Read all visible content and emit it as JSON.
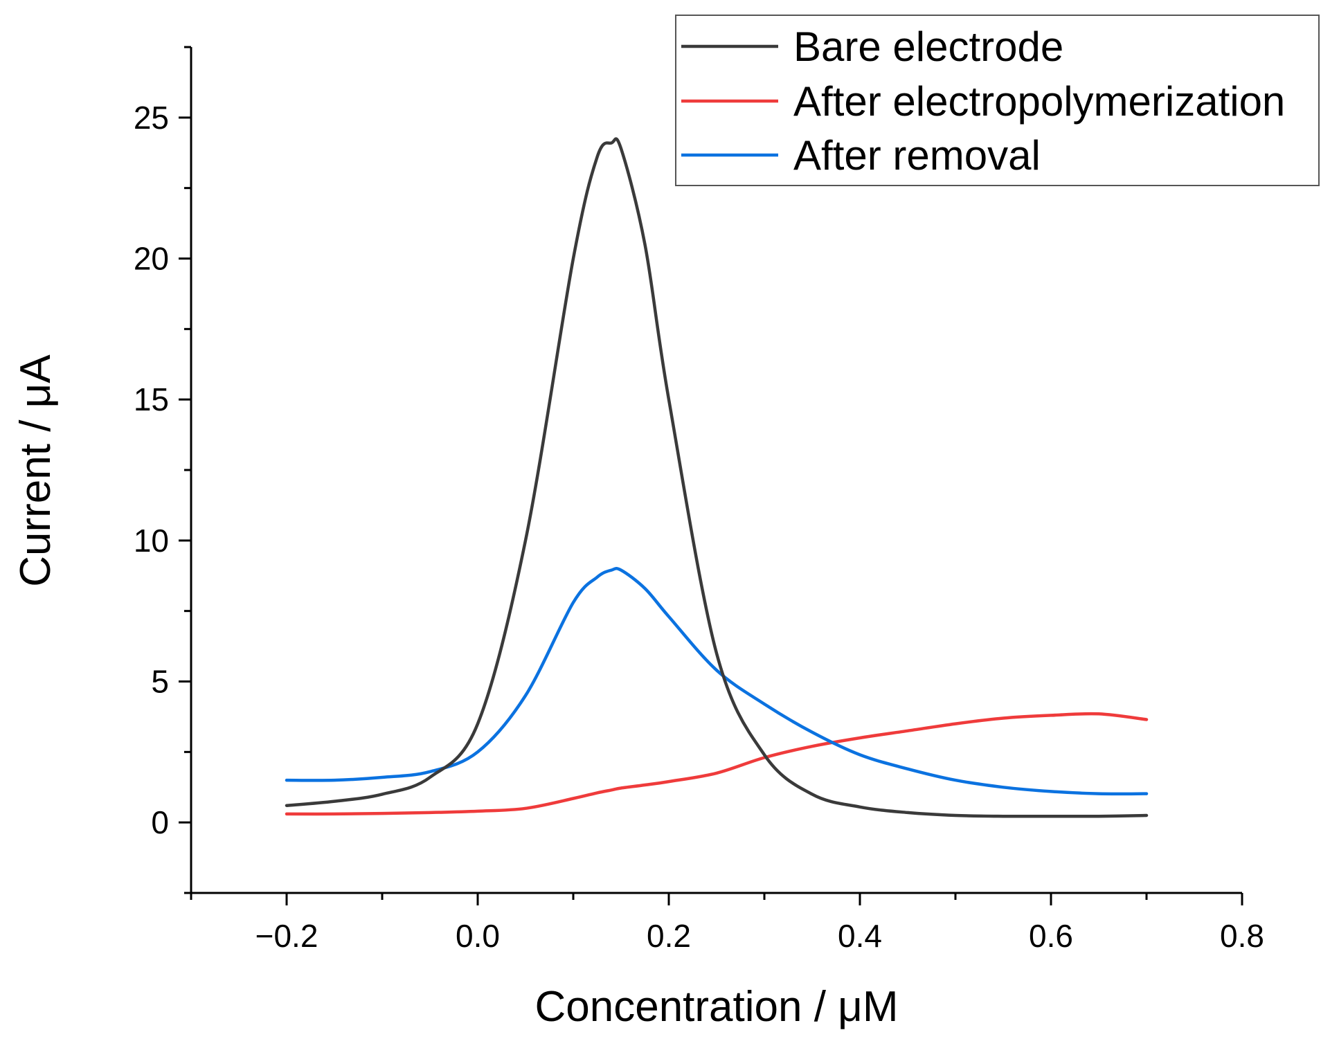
{
  "chart_data": {
    "type": "line",
    "title": "",
    "xlabel": "Concentration / μM",
    "ylabel": "Current / μA",
    "xlim": [
      -0.3,
      0.8
    ],
    "ylim": [
      -2.5,
      27.5
    ],
    "x_ticks": [
      -0.2,
      0.0,
      0.2,
      0.4,
      0.6,
      0.8
    ],
    "x_tick_labels": [
      "−0.2",
      "0.0",
      "0.2",
      "0.4",
      "0.6",
      "0.8"
    ],
    "y_ticks": [
      0,
      5,
      10,
      15,
      20,
      25
    ],
    "y_tick_labels": [
      "0",
      "5",
      "10",
      "15",
      "20",
      "25"
    ],
    "grid": false,
    "legend_position": "top-right",
    "x": [
      -0.2,
      -0.15,
      -0.1,
      -0.05,
      0.0,
      0.05,
      0.1,
      0.125,
      0.14,
      0.15,
      0.175,
      0.2,
      0.25,
      0.3,
      0.35,
      0.4,
      0.45,
      0.5,
      0.55,
      0.6,
      0.65,
      0.7
    ],
    "series": [
      {
        "name": "Bare electrode",
        "color": "#3a3a3a",
        "values": [
          0.6,
          0.75,
          1.0,
          1.6,
          3.5,
          10.0,
          20.0,
          23.6,
          24.1,
          23.9,
          20.5,
          15.0,
          6.0,
          2.4,
          1.0,
          0.55,
          0.35,
          0.25,
          0.22,
          0.22,
          0.22,
          0.25
        ]
      },
      {
        "name": "After electropolymerization",
        "color": "#ef3b3b",
        "values": [
          0.3,
          0.3,
          0.32,
          0.35,
          0.4,
          0.5,
          0.85,
          1.05,
          1.15,
          1.22,
          1.33,
          1.45,
          1.75,
          2.3,
          2.7,
          3.0,
          3.25,
          3.5,
          3.7,
          3.8,
          3.85,
          3.65
        ]
      },
      {
        "name": "After removal",
        "color": "#0b72e0",
        "values": [
          1.5,
          1.5,
          1.6,
          1.8,
          2.5,
          4.5,
          7.8,
          8.7,
          8.95,
          8.95,
          8.3,
          7.3,
          5.4,
          4.2,
          3.2,
          2.4,
          1.9,
          1.5,
          1.25,
          1.1,
          1.02,
          1.02
        ]
      }
    ]
  }
}
